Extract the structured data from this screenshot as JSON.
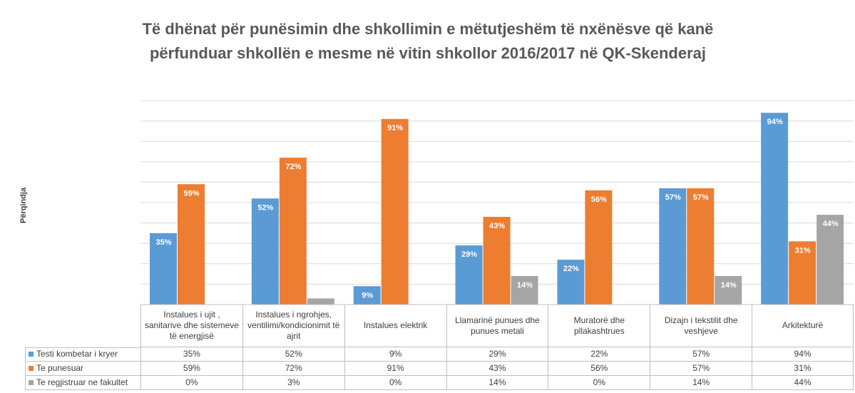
{
  "chart_data": {
    "type": "bar",
    "title": "Të dhënat për punësimin dhe shkollimin e mëtutjeshëm të nxënësve që kanë përfunduar shkollën e mesme në vitin shkollor 2016/2017 në QK-Skenderaj",
    "y_label": "Përqindja",
    "categories": [
      "Instalues i ujit , sanitarive dhe sistemeve të energjisë",
      "Instalues i ngrohjes, ventilimi/kondicionimit të ajrit",
      "Instalues elektrik",
      "Llamarinë punues dhe punues metali",
      "Muratorë dhe pllakashtrues",
      "Dizajn i tekstilit dhe veshjeve",
      "Arkitekturë"
    ],
    "series": [
      {
        "name": "Testi kombetar i kryer",
        "color": "#5b9bd5",
        "values": [
          35,
          52,
          9,
          29,
          22,
          57,
          94
        ],
        "value_labels": [
          "35%",
          "52%",
          "9%",
          "29%",
          "22%",
          "57%",
          "94%"
        ]
      },
      {
        "name": "Te punesuar",
        "color": "#ed7d31",
        "values": [
          59,
          72,
          91,
          43,
          56,
          57,
          31
        ],
        "value_labels": [
          "59%",
          "72%",
          "91%",
          "43%",
          "56%",
          "57%",
          "31%"
        ]
      },
      {
        "name": "Te regjistruar ne fakultet",
        "color": "#a5a5a5",
        "values": [
          0,
          3,
          0,
          14,
          0,
          14,
          44
        ],
        "value_labels": [
          "0%",
          "3%",
          "0%",
          "14%",
          "0%",
          "14%",
          "44%"
        ]
      }
    ],
    "ylim": [
      0,
      100
    ],
    "yticks": [
      0,
      10,
      20,
      30,
      40,
      50,
      60,
      70,
      80,
      90,
      100
    ],
    "grid": true,
    "data_table": true
  }
}
